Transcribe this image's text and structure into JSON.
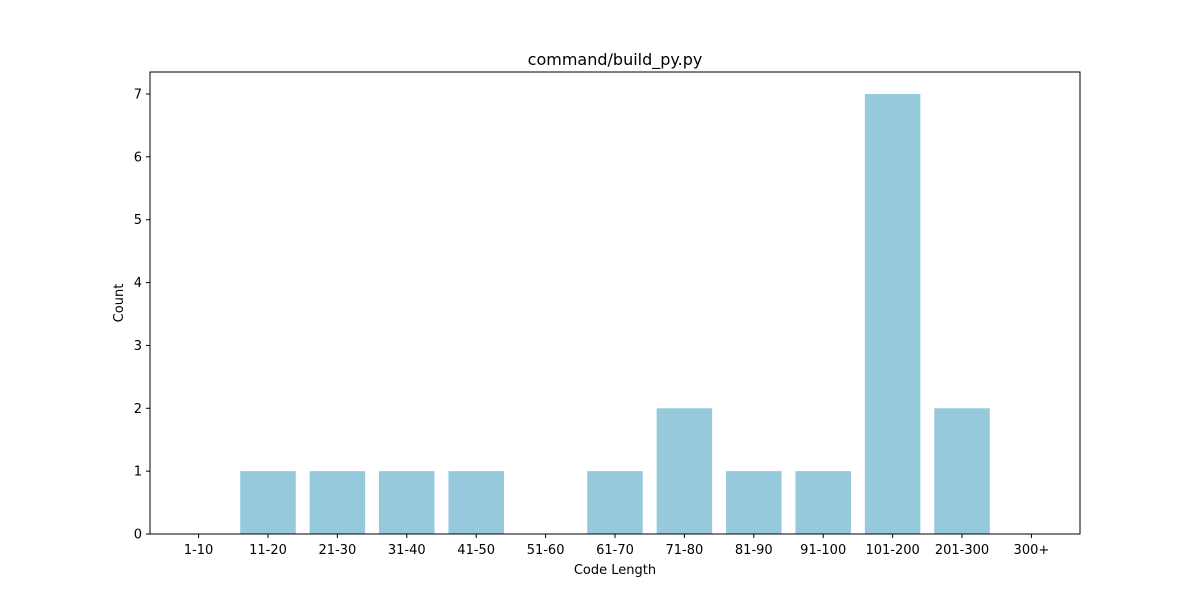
{
  "chart_data": {
    "type": "bar",
    "title": "command/build_py.py",
    "xlabel": "Code Length",
    "ylabel": "Count",
    "categories": [
      "1-10",
      "11-20",
      "21-30",
      "31-40",
      "41-50",
      "51-60",
      "61-70",
      "71-80",
      "81-90",
      "91-100",
      "101-200",
      "201-300",
      "300+"
    ],
    "values": [
      0,
      1,
      1,
      1,
      1,
      0,
      1,
      2,
      1,
      1,
      7,
      2,
      0
    ],
    "ylim": [
      0,
      7.35
    ],
    "yticks": [
      0,
      1,
      2,
      3,
      4,
      5,
      6,
      7
    ],
    "grid": false,
    "legend": "none",
    "bar_color": "#96c9dc"
  }
}
